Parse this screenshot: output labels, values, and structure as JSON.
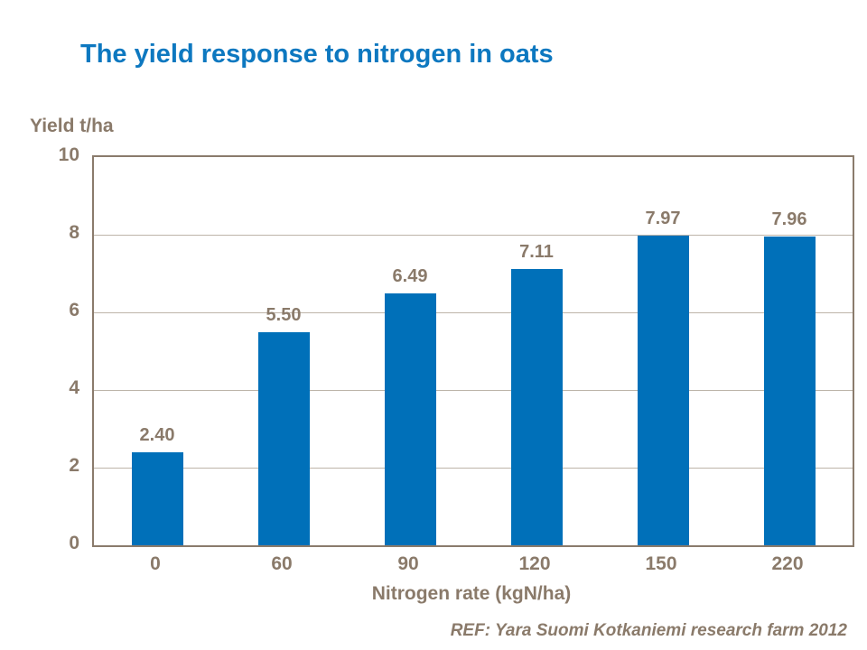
{
  "slide": {
    "footer_ref": "REF: Yara Suomi Kotkaniemi research farm 2012"
  },
  "chart_data": {
    "type": "bar",
    "title": "The yield response to nitrogen in oats",
    "xlabel": "Nitrogen rate (kgN/ha)",
    "ylabel": "Yield t/ha",
    "categories": [
      "0",
      "60",
      "90",
      "120",
      "150",
      "220"
    ],
    "values": [
      2.4,
      5.5,
      6.49,
      7.11,
      7.97,
      7.96
    ],
    "value_labels": [
      "2.40",
      "5.50",
      "6.49",
      "7.11",
      "7.97",
      "7.96"
    ],
    "ylim": [
      0,
      10
    ],
    "yticks": [
      0,
      2,
      4,
      6,
      8,
      10
    ],
    "grid": "horizontal",
    "legend": "none",
    "colors": {
      "bar": "#0070b9",
      "title": "#0d78c0",
      "axis_text": "#8a7a6a",
      "plot_border": "#8a7b6c",
      "gridline": "#bdb4a9",
      "background": "#ffffff"
    }
  }
}
